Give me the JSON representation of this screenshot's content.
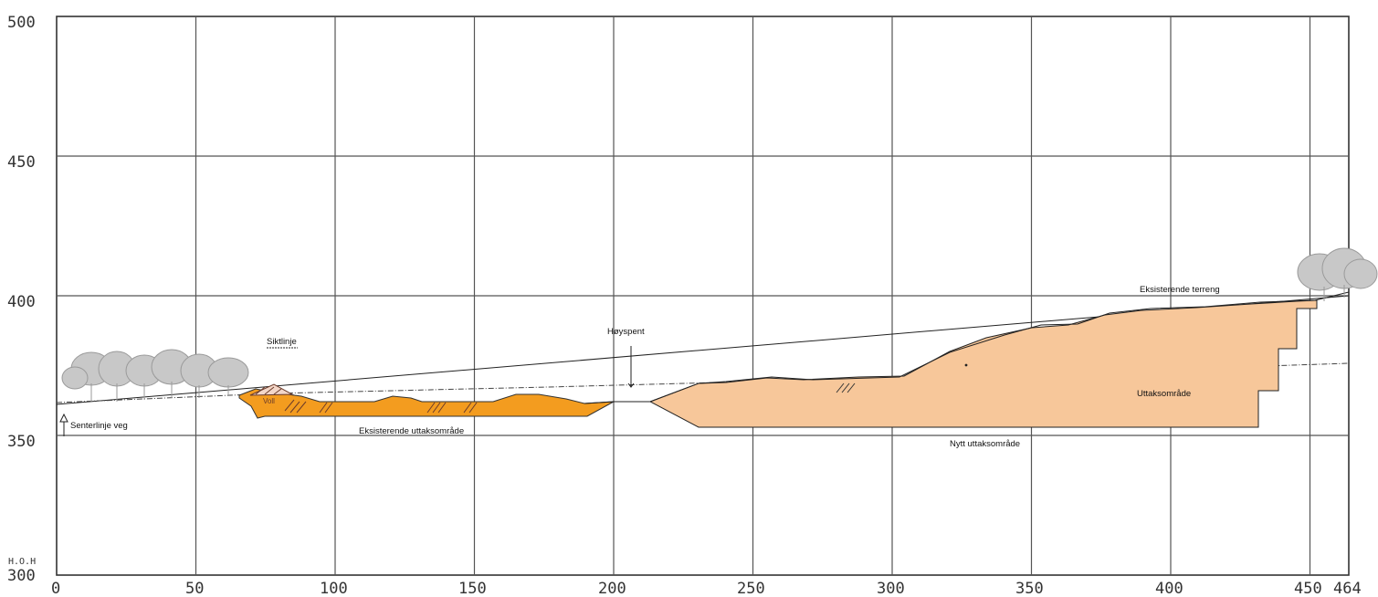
{
  "axes": {
    "y_ticks": [
      "500",
      "450",
      "400",
      "350"
    ],
    "y_bottom_unit": "H.O.H",
    "y_bottom_value": "300",
    "x_ticks": [
      "0",
      "50",
      "100",
      "150",
      "200",
      "250",
      "300",
      "350",
      "400",
      "450",
      "464"
    ],
    "x_range": [
      0,
      464
    ],
    "y_range": [
      300,
      500
    ],
    "grid": true
  },
  "labels": {
    "sightline": "Siktlinje",
    "power_line": "Høyspent",
    "centerline": "Senterlinje veg",
    "existing_extraction": "Eksisterende uttaksområde",
    "new_extraction": "Nytt uttaksområde",
    "existing_terrain": "Eksisterende terreng",
    "extraction_area": "Uttaksområde",
    "wall_mark": "Voll"
  },
  "colors": {
    "existing_extraction": "#f39c1f",
    "new_extraction": "#f7c79a",
    "grid": "#5a5a5a",
    "trees": "#b5b5b5"
  }
}
